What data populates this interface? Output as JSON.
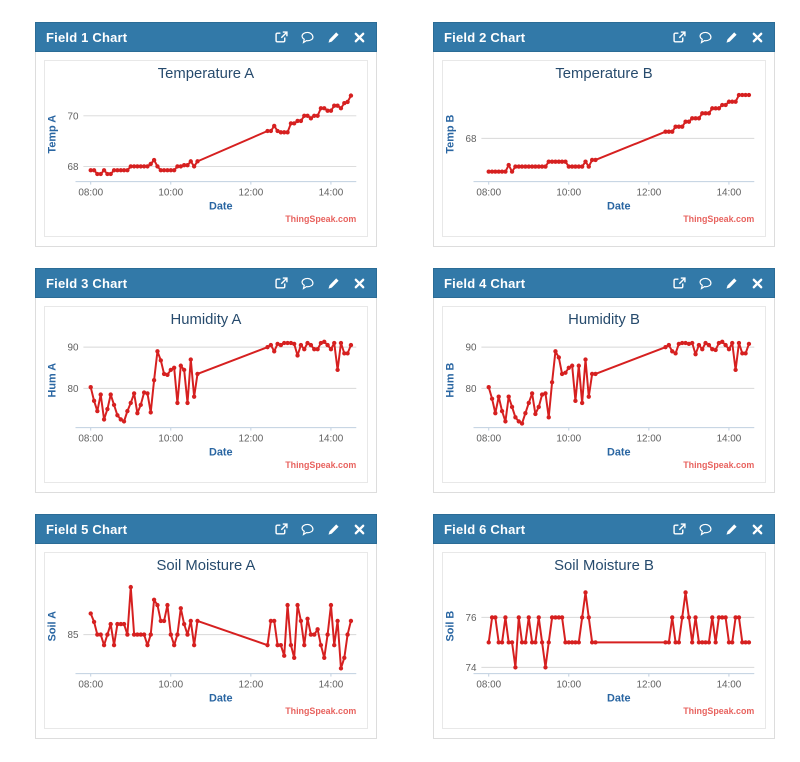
{
  "colors": {
    "header_bg": "#3279a8",
    "header_border": "#2b6c96",
    "header_text": "#ffffff",
    "series_red": "#d62020",
    "chart_title": "#274b6d",
    "axis_title_blue": "#2a66a2",
    "tick_label_gray": "#606060",
    "gridline": "#d8d8d8",
    "axis_line": "#c0d0e0",
    "watermark_red": "#e8635f",
    "panel_border": "#dddddd"
  },
  "icons": [
    "external-link",
    "comment",
    "edit",
    "close"
  ],
  "panels": [
    {
      "header": "Field 1 Chart"
    },
    {
      "header": "Field 2 Chart"
    },
    {
      "header": "Field 3 Chart"
    },
    {
      "header": "Field 4 Chart"
    },
    {
      "header": "Field 5 Chart"
    },
    {
      "header": "Field 6 Chart"
    }
  ],
  "chart_data": {
    "type": "line",
    "xlabel": "Date",
    "watermark": "ThingSpeak.com",
    "series_color": "#d62020",
    "xlim": [
      -8,
      398
    ],
    "x_ticks": [
      {
        "t": 0,
        "label": "08:00"
      },
      {
        "t": 120,
        "label": "10:00"
      },
      {
        "t": 240,
        "label": "12:00"
      },
      {
        "t": 360,
        "label": "14:00"
      }
    ],
    "x_minutes": [
      0,
      5,
      10,
      15,
      20,
      25,
      30,
      35,
      40,
      45,
      50,
      55,
      60,
      65,
      70,
      75,
      80,
      85,
      90,
      95,
      100,
      105,
      110,
      115,
      120,
      125,
      130,
      135,
      140,
      145,
      150,
      155,
      160,
      265,
      270,
      275,
      280,
      285,
      290,
      295,
      300,
      305,
      310,
      315,
      320,
      325,
      330,
      335,
      340,
      345,
      350,
      355,
      360,
      365,
      370,
      375,
      380,
      385,
      390
    ],
    "charts": [
      {
        "title": "Temperature A",
        "ylabel": "Temp A",
        "y_ticks": [
          68,
          70
        ],
        "ylim": [
          67.4,
          71.15
        ],
        "values": [
          67.85,
          67.85,
          67.7,
          67.7,
          67.85,
          67.7,
          67.7,
          67.85,
          67.85,
          67.85,
          67.85,
          67.85,
          68.0,
          68.0,
          68.0,
          68.0,
          68.0,
          68.0,
          68.1,
          68.25,
          68.0,
          67.85,
          67.85,
          67.85,
          67.85,
          67.85,
          68.0,
          68.0,
          68.05,
          68.05,
          68.2,
          68.0,
          68.2,
          69.4,
          69.4,
          69.6,
          69.4,
          69.35,
          69.35,
          69.35,
          69.7,
          69.7,
          69.8,
          69.8,
          70.0,
          70.0,
          69.9,
          70.0,
          70.0,
          70.3,
          70.3,
          70.2,
          70.2,
          70.4,
          70.4,
          70.3,
          70.5,
          70.55,
          70.8
        ]
      },
      {
        "title": "Temperature B",
        "ylabel": "Temp B",
        "y_ticks": [
          68
        ],
        "ylim": [
          66.7,
          69.55
        ],
        "values": [
          67.0,
          67.0,
          67.0,
          67.0,
          67.0,
          67.0,
          67.2,
          67.0,
          67.15,
          67.15,
          67.15,
          67.15,
          67.15,
          67.15,
          67.15,
          67.15,
          67.15,
          67.15,
          67.3,
          67.3,
          67.3,
          67.3,
          67.3,
          67.3,
          67.15,
          67.15,
          67.15,
          67.15,
          67.15,
          67.3,
          67.15,
          67.35,
          67.35,
          68.2,
          68.2,
          68.2,
          68.35,
          68.35,
          68.35,
          68.5,
          68.5,
          68.6,
          68.6,
          68.6,
          68.75,
          68.75,
          68.75,
          68.9,
          68.9,
          68.9,
          69.0,
          69.0,
          69.1,
          69.1,
          69.1,
          69.3,
          69.3,
          69.3,
          69.3
        ]
      },
      {
        "title": "Humidity A",
        "ylabel": "Hum A",
        "y_ticks": [
          80,
          90
        ],
        "ylim": [
          70.5,
          93.5
        ],
        "values": [
          80.3,
          77.0,
          74.5,
          78.5,
          72.5,
          75.0,
          78.5,
          76.0,
          73.5,
          72.5,
          72.0,
          74.5,
          76.5,
          78.8,
          74.0,
          76.0,
          79.0,
          78.8,
          74.2,
          82.0,
          89.0,
          86.8,
          83.5,
          83.3,
          84.5,
          85.0,
          76.5,
          85.5,
          84.5,
          76.5,
          87.0,
          78.0,
          83.5,
          90.0,
          90.5,
          89.0,
          90.8,
          90.5,
          91.0,
          91.0,
          91.0,
          90.8,
          88.0,
          90.5,
          89.5,
          91.0,
          90.5,
          89.5,
          89.5,
          91.0,
          91.3,
          90.5,
          89.5,
          91.0,
          84.5,
          91.0,
          88.5,
          88.5,
          90.5
        ]
      },
      {
        "title": "Humidity B",
        "ylabel": "Hum B",
        "y_ticks": [
          80,
          90
        ],
        "ylim": [
          70.5,
          93.5
        ],
        "values": [
          80.3,
          77.5,
          74.0,
          78.0,
          74.5,
          72.0,
          78.0,
          75.5,
          73.0,
          72.0,
          71.5,
          74.0,
          76.5,
          78.8,
          73.8,
          75.5,
          78.5,
          78.8,
          73.0,
          81.5,
          89.0,
          87.5,
          83.5,
          83.8,
          85.0,
          85.5,
          77.0,
          85.5,
          76.5,
          87.0,
          78.0,
          83.5,
          83.5,
          90.0,
          90.5,
          89.0,
          88.5,
          90.8,
          91.0,
          91.0,
          90.8,
          91.0,
          88.3,
          90.5,
          89.5,
          91.0,
          90.5,
          89.5,
          89.3,
          91.0,
          91.3,
          90.5,
          89.5,
          91.0,
          84.5,
          91.0,
          88.5,
          88.5,
          90.8
        ]
      },
      {
        "title": "Soil Moisture A",
        "ylabel": "Soil A",
        "y_ticks": [
          85
        ],
        "ylim": [
          81.3,
          90.3
        ],
        "values": [
          87.0,
          86.2,
          85.0,
          85.0,
          84.0,
          85.0,
          86.0,
          84.0,
          86.0,
          86.0,
          86.0,
          85.0,
          89.5,
          85.0,
          85.0,
          85.0,
          85.0,
          84.0,
          85.0,
          88.3,
          87.8,
          86.3,
          86.3,
          87.8,
          85.0,
          84.0,
          85.0,
          87.5,
          86.0,
          85.0,
          86.3,
          84.0,
          86.3,
          84.0,
          86.3,
          86.3,
          84.0,
          84.0,
          83.0,
          87.8,
          84.0,
          82.8,
          87.8,
          86.3,
          84.0,
          86.5,
          85.0,
          85.0,
          85.5,
          84.0,
          82.8,
          85.0,
          87.8,
          84.0,
          86.3,
          81.8,
          82.8,
          85.0,
          86.3
        ]
      },
      {
        "title": "Soil Moisture B",
        "ylabel": "Soil B",
        "y_ticks": [
          74,
          76
        ],
        "ylim": [
          73.75,
          77.55
        ],
        "values": [
          75,
          76,
          76,
          75,
          75,
          76,
          75,
          75,
          74,
          76,
          75,
          75,
          76,
          75,
          75,
          76,
          75,
          74,
          75,
          76,
          76,
          76,
          76,
          75,
          75,
          75,
          75,
          75,
          76,
          77,
          76,
          75,
          75,
          75,
          75,
          76,
          75,
          75,
          76,
          77,
          76,
          75,
          76,
          75,
          75,
          75,
          75,
          76,
          75,
          76,
          76,
          76,
          75,
          75,
          76,
          76,
          75,
          75,
          75
        ]
      }
    ]
  }
}
